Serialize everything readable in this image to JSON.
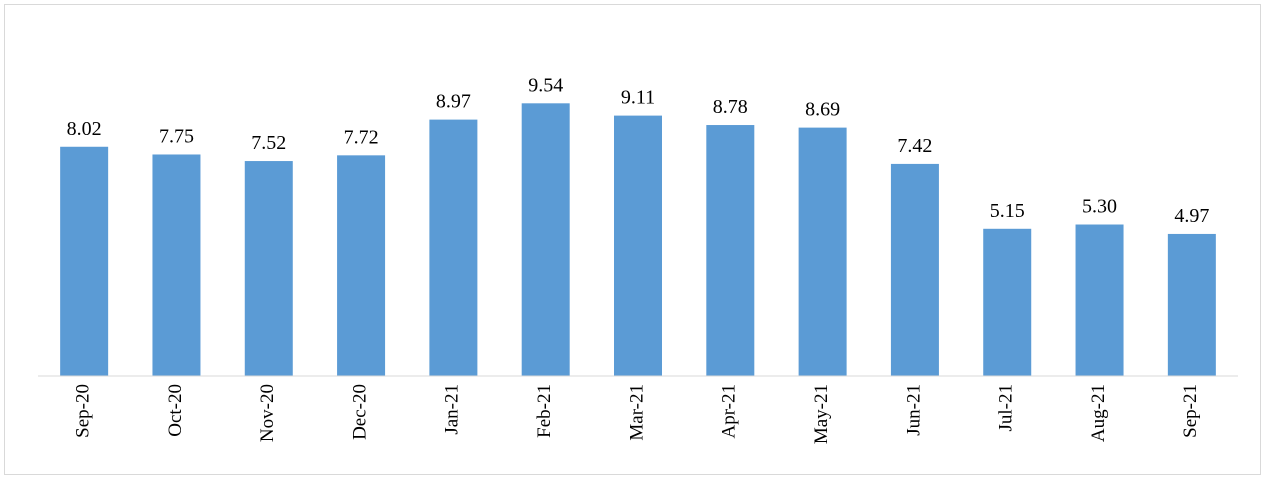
{
  "chart_data": {
    "type": "bar",
    "categories": [
      "Sep-20",
      "Oct-20",
      "Nov-20",
      "Dec-20",
      "Jan-21",
      "Feb-21",
      "Mar-21",
      "Apr-21",
      "May-21",
      "Jun-21",
      "Jul-21",
      "Aug-21",
      "Sep-21"
    ],
    "values": [
      8.02,
      7.75,
      7.52,
      7.72,
      8.97,
      9.54,
      9.11,
      8.78,
      8.69,
      7.42,
      5.15,
      5.3,
      4.97
    ],
    "value_labels": [
      "8.02",
      "7.75",
      "7.52",
      "7.72",
      "8.97",
      "9.54",
      "9.11",
      "8.78",
      "8.69",
      "7.42",
      "5.15",
      "5.30",
      "4.97"
    ],
    "color": "#5b9bd5",
    "ylim": [
      0,
      12
    ]
  }
}
